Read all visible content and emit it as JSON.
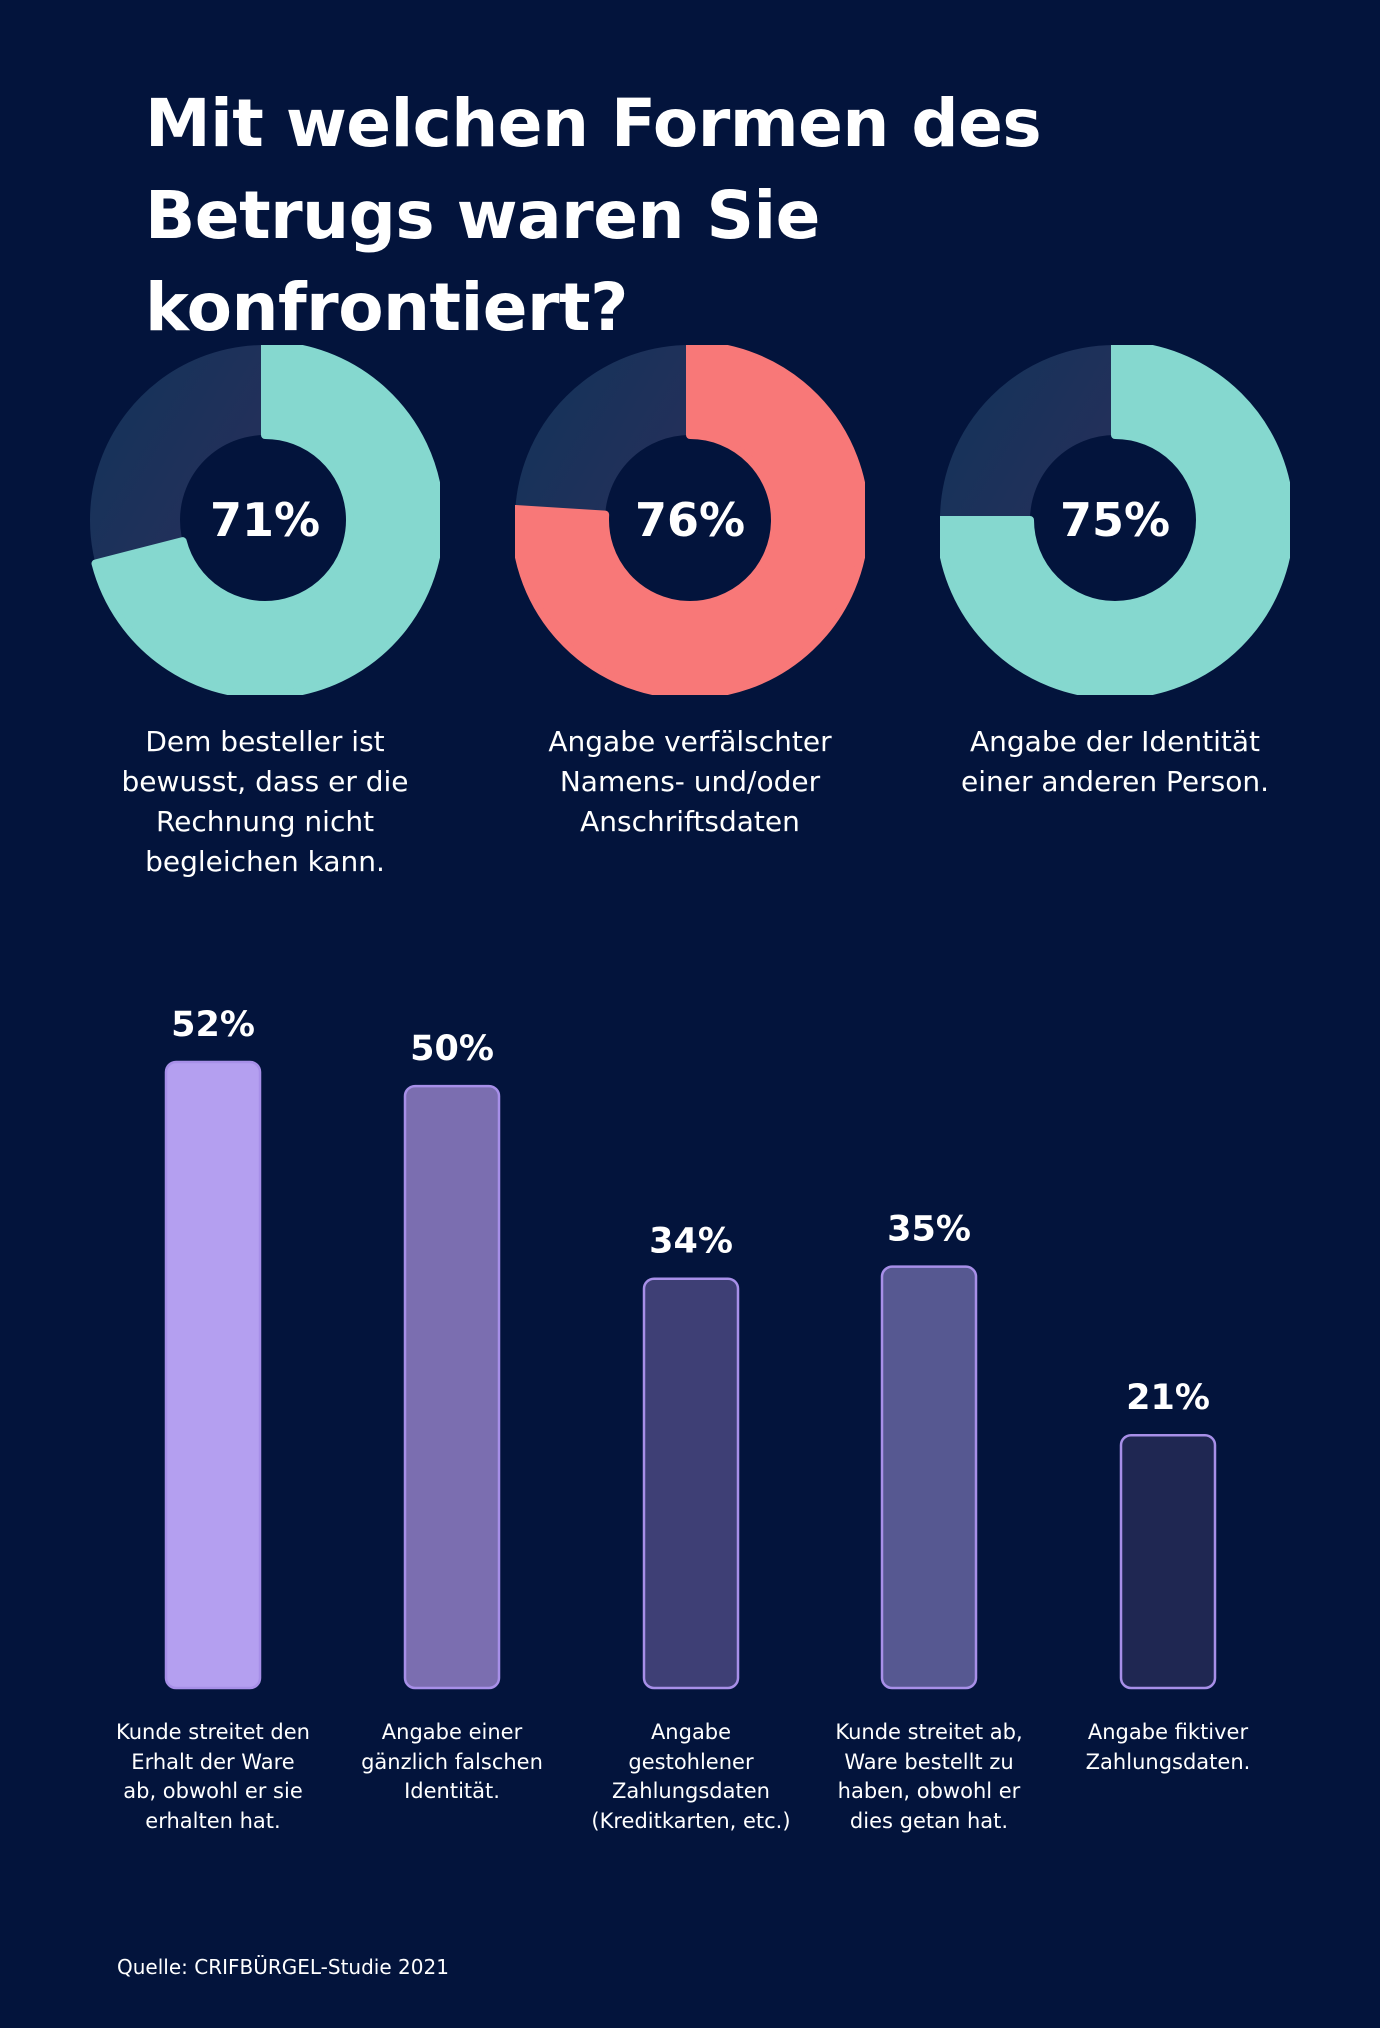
{
  "title_line1": "Mit welchen Formen des",
  "title_line2": "Betrugs waren Sie konfrontiert?",
  "chart_data": [
    {
      "type": "pie",
      "variant": "donut",
      "slices": [
        {
          "label": "Dem besteller ist bewusst, dass er die Rechnung nicht begleichen kann.",
          "value": 71,
          "value_label": "71%",
          "color": "#85d8cf"
        },
        {
          "label": "Angabe verfälschter Namens- und/oder Anschriftsdaten",
          "value": 76,
          "value_label": "76%",
          "color": "#f87878"
        },
        {
          "label": "Angabe der Identität einer anderen Person.",
          "value": 75,
          "value_label": "75%",
          "color": "#85d8cf"
        }
      ],
      "labels_lines": [
        [
          "Dem besteller ist",
          "bewusst, dass er die",
          "Rechnung nicht",
          "begleichen kann."
        ],
        [
          "Angabe verfälschter",
          "Namens- und/oder",
          "Anschriftsdaten"
        ],
        [
          "Angabe der Identität",
          "einer anderen Person."
        ]
      ]
    },
    {
      "type": "bar",
      "categories": [
        "Kunde streitet den Erhalt der Ware ab, obwohl er sie erhalten hat.",
        "Angabe einer gänzlich falschen Identität.",
        "Angabe gestohlener Zahlungsdaten (Kreditkarten, etc.)",
        "Kunde streitet ab, Ware bestellt zu haben, obwohl er dies getan hat.",
        "Angabe fiktiver Zahlungsdaten."
      ],
      "category_lines": [
        [
          "Kunde streitet den",
          "Erhalt der Ware",
          "ab, obwohl er sie",
          "erhalten hat."
        ],
        [
          "Angabe einer",
          "gänzlich falschen",
          "Identität."
        ],
        [
          "Angabe",
          "gestohlener",
          "Zahlungsdaten",
          "(Kreditkarten, etc.)"
        ],
        [
          "Kunde streitet ab,",
          "Ware bestellt zu",
          "haben, obwohl er",
          "dies getan hat."
        ],
        [
          "Angabe fiktiver",
          "Zahlungsdaten."
        ]
      ],
      "values": [
        52,
        50,
        34,
        35,
        21
      ],
      "value_labels": [
        "52%",
        "50%",
        "34%",
        "35%",
        "21%"
      ],
      "colors": [
        "#b49ff0",
        "#7b6eb0",
        "#3e3f75",
        "#565891",
        "#1f2752"
      ],
      "border_color": "#a78fe8"
    }
  ],
  "source": "Quelle: CRIFBÜRGEL-Studie 2021"
}
